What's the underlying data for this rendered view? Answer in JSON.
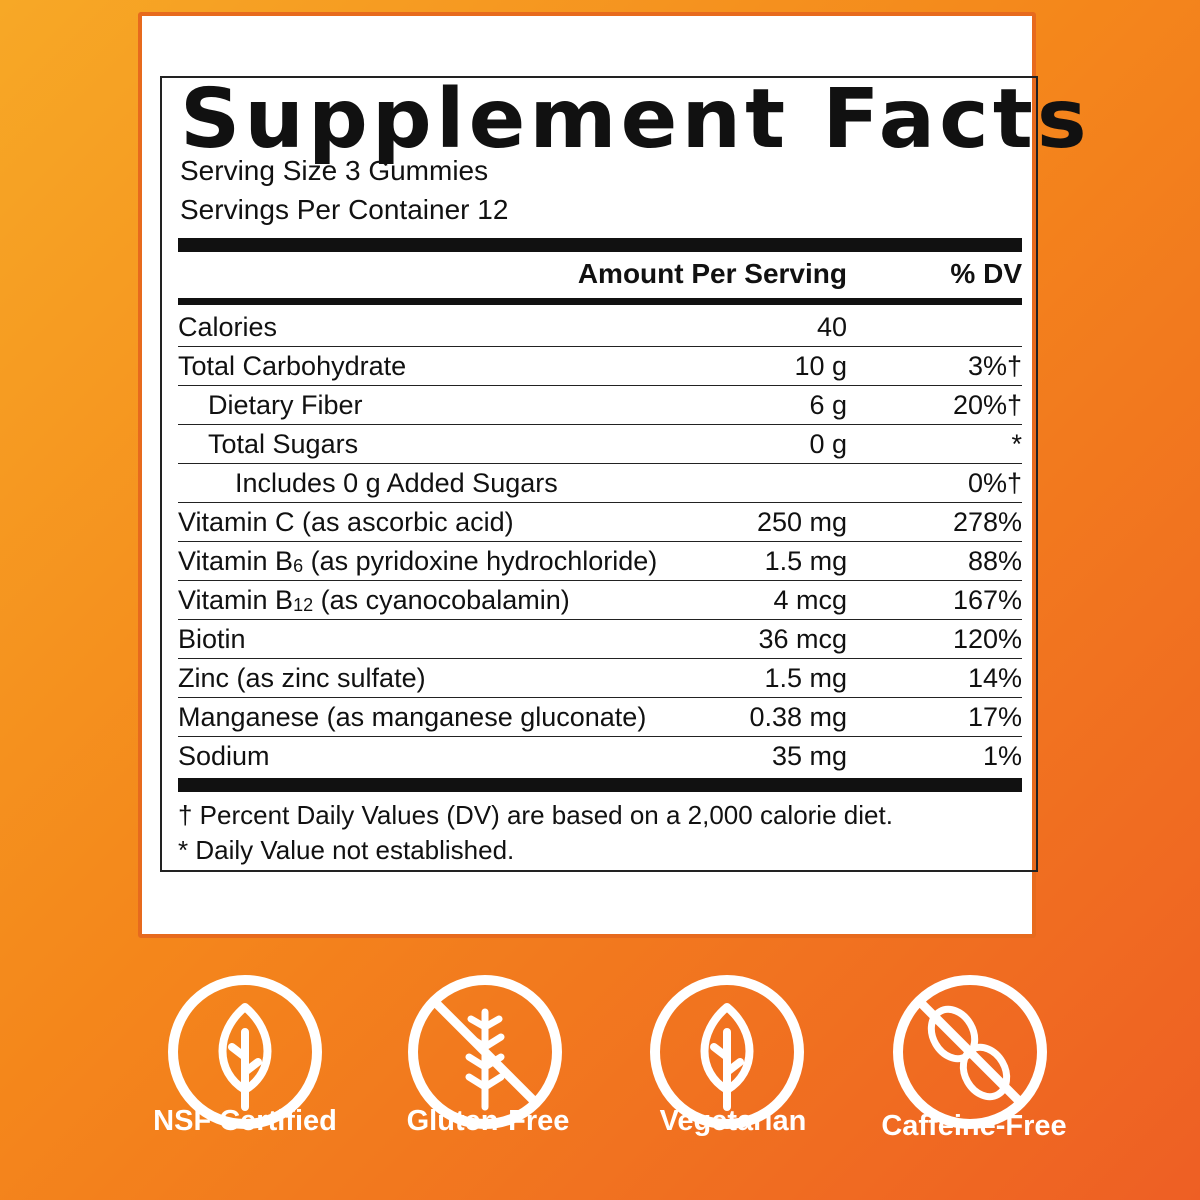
{
  "label": {
    "title": "Supplement Facts",
    "serving_size": "Serving Size 3 Gummies",
    "servings_per_container": "Servings Per Container 12",
    "header": {
      "amount": "Amount Per Serving",
      "dv": "% DV"
    },
    "rows": [
      {
        "name": "Calories",
        "amount": "40"
      },
      {
        "name": "Total Carbohydrate",
        "amount": "10 g",
        "dv": "3%†",
        "sub_rows": [
          {
            "name": "Dietary Fiber",
            "amount": "6 g",
            "dv": "20%†"
          },
          {
            "name": "Total Sugars",
            "amount": "0 g",
            "dv": "*",
            "sub_rows": [
              {
                "name": "Includes 0 g Added Sugars",
                "dv": "0%†"
              }
            ]
          }
        ]
      },
      {
        "name": "Vitamin C (as ascorbic acid)",
        "amount": "250 mg",
        "dv": "278%"
      },
      {
        "name": [
          "Vitamin B",
          "6",
          " (as pyridoxine hydrochloride)"
        ],
        "amount": "1.5 mg",
        "dv": "88%"
      },
      {
        "name": [
          "Vitamin B",
          "12",
          " (as cyanocobalamin)"
        ],
        "amount": "4 mcg",
        "dv": "167%"
      },
      {
        "name": "Biotin",
        "amount": "36 mcg",
        "dv": "120%"
      },
      {
        "name": "Zinc (as zinc sulfate)",
        "amount": "1.5 mg",
        "dv": "14%"
      },
      {
        "name": "Manganese (as manganese gluconate)",
        "amount": "0.38 mg",
        "dv": "17%"
      },
      {
        "name": "Sodium",
        "amount": "35 mg",
        "dv": "1%"
      }
    ],
    "footnotes": [
      "† Percent Daily Values (DV) are based on a 2,000 calorie diet.",
      "* Daily Value not established."
    ]
  },
  "badges": [
    "NSF Certified",
    "Gluten-Free",
    "Vegetarian",
    "Caffeine-Free"
  ]
}
